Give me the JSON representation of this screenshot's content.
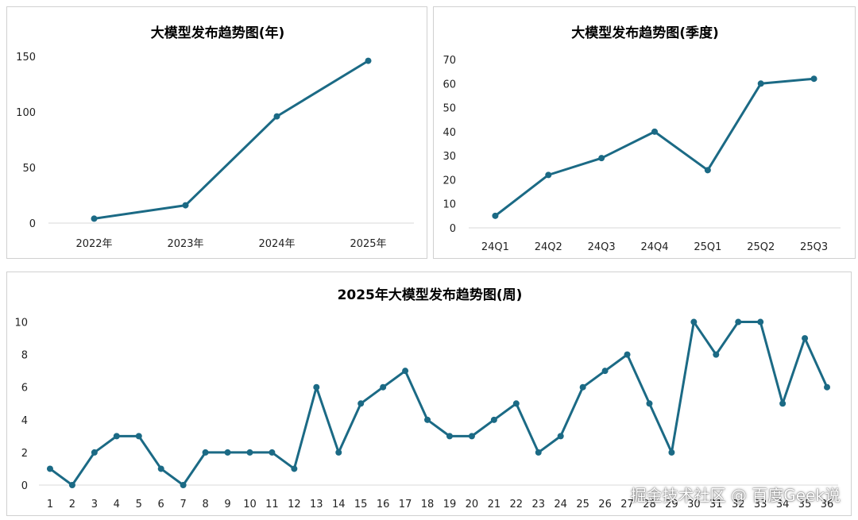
{
  "chart_data": [
    {
      "type": "line",
      "title": "大模型发布趋势图(年)",
      "categories": [
        "2022年",
        "2023年",
        "2024年",
        "2025年"
      ],
      "series": [
        {
          "values": [
            4,
            16,
            96,
            146
          ]
        }
      ],
      "ylim": [
        0,
        170
      ],
      "yticks": [
        0,
        50,
        100,
        150
      ],
      "xlabel": "",
      "ylabel": "",
      "grid": false,
      "color": "#1b6a85"
    },
    {
      "type": "line",
      "title": "大模型发布趋势图(季度)",
      "categories": [
        "24Q1",
        "24Q2",
        "24Q3",
        "24Q4",
        "25Q1",
        "25Q2",
        "25Q3"
      ],
      "series": [
        {
          "values": [
            5,
            22,
            29,
            40,
            24,
            60,
            62
          ]
        }
      ],
      "ylim": [
        0,
        70
      ],
      "yticks": [
        0,
        10,
        20,
        30,
        40,
        50,
        60,
        70
      ],
      "xlabel": "",
      "ylabel": "",
      "grid": false,
      "color": "#1b6a85"
    },
    {
      "type": "line",
      "title": "2025年大模型发布趋势图(周)",
      "categories": [
        "1",
        "2",
        "3",
        "4",
        "5",
        "6",
        "7",
        "8",
        "9",
        "10",
        "11",
        "12",
        "13",
        "14",
        "15",
        "16",
        "17",
        "18",
        "19",
        "20",
        "21",
        "22",
        "23",
        "24",
        "25",
        "26",
        "27",
        "28",
        "29",
        "30",
        "31",
        "32",
        "33",
        "34",
        "35",
        "36"
      ],
      "series": [
        {
          "values": [
            1,
            0,
            2,
            3,
            3,
            1,
            0,
            2,
            2,
            2,
            2,
            1,
            6,
            2,
            5,
            6,
            7,
            4,
            3,
            3,
            4,
            5,
            2,
            3,
            6,
            7,
            8,
            5,
            2,
            10,
            8,
            10,
            10,
            5,
            9,
            6
          ]
        }
      ],
      "ylim": [
        0,
        11
      ],
      "yticks": [
        0,
        2,
        4,
        6,
        8,
        10
      ],
      "xlabel": "",
      "ylabel": "",
      "grid": false,
      "color": "#1b6a85"
    }
  ],
  "watermark": "掘金技术社区 @ 百度Geek说"
}
